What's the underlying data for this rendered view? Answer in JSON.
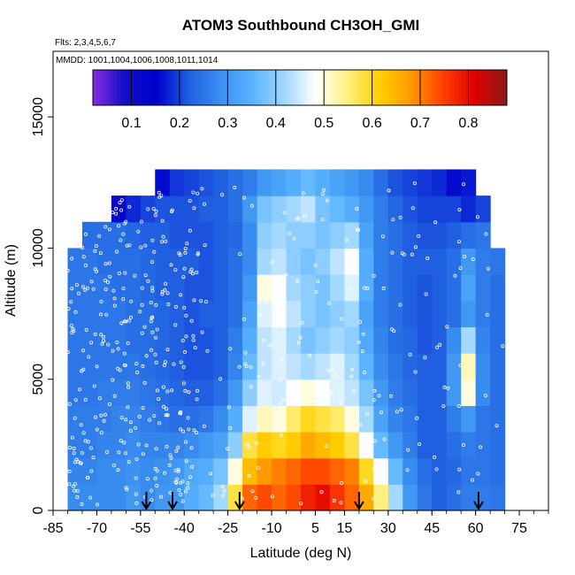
{
  "chart_data": {
    "type": "heatmap",
    "title": "ATOM3 Southbound CH3OH_GMI",
    "flights_label": "Flts: 2,3,4,5,6,7",
    "dates_label": "MMDD: 1001,1004,1006,1008,1011,1014",
    "xlabel": "Latitude (deg N)",
    "ylabel": "Altitude (m)",
    "xlim": [
      -85,
      85
    ],
    "ylim": [
      0,
      17500
    ],
    "x_ticks": [
      -85,
      -70,
      -55,
      -40,
      -25,
      -10,
      5,
      15,
      30,
      45,
      60,
      75
    ],
    "x_tick_labels": [
      "-85",
      "-70",
      "-55",
      "-40",
      "-25",
      "-10",
      "5",
      "15",
      "30",
      "45",
      "60",
      "75"
    ],
    "y_ticks": [
      0,
      5000,
      10000,
      15000
    ],
    "y_tick_labels": [
      "0",
      "5000",
      "10000",
      "15000"
    ],
    "colorbar": {
      "min": 0.02,
      "max": 0.88,
      "ticks": [
        0.1,
        0.2,
        0.3,
        0.4,
        0.5,
        0.6,
        0.7,
        0.8
      ],
      "tick_labels": [
        "0.1",
        "0.2",
        "0.3",
        "0.4",
        "0.5",
        "0.6",
        "0.7",
        "0.8"
      ],
      "colors": [
        "#8a2be2",
        "#1010c8",
        "#0000cd",
        "#1f5fe0",
        "#3a8ff0",
        "#5ab4ff",
        "#9fd6ff",
        "#ffffff",
        "#fff080",
        "#ffd000",
        "#ff9800",
        "#ff4000",
        "#e00000",
        "#8b1a1a"
      ]
    },
    "lat_centers": [
      -77.5,
      -72.5,
      -67.5,
      -62.5,
      -57.5,
      -52.5,
      -47.5,
      -42.5,
      -37.5,
      -32.5,
      -27.5,
      -22.5,
      -17.5,
      -12.5,
      -7.5,
      -2.5,
      2.5,
      7.5,
      12.5,
      17.5,
      22.5,
      27.5,
      32.5,
      37.5,
      42.5,
      47.5,
      52.5,
      57.5,
      62.5,
      67.5
    ],
    "alt_centers": [
      500,
      1500,
      2500,
      3500,
      4500,
      5500,
      6500,
      7500,
      8500,
      9500,
      10500,
      11500,
      12500
    ],
    "values": [
      [
        0.28,
        0.28,
        0.28,
        0.28,
        0.3,
        0.28,
        0.3,
        0.3,
        0.34,
        0.36,
        0.42,
        0.58,
        0.72,
        0.74,
        0.72,
        0.74,
        0.78,
        0.8,
        0.76,
        0.72,
        0.66,
        0.55,
        0.42,
        0.3,
        0.25,
        0.22,
        0.24,
        0.26,
        0.26,
        0.25
      ],
      [
        0.27,
        0.27,
        0.28,
        0.28,
        0.29,
        0.28,
        0.29,
        0.3,
        0.33,
        0.34,
        0.38,
        0.5,
        0.64,
        0.68,
        0.7,
        0.72,
        0.74,
        0.74,
        0.72,
        0.7,
        0.6,
        0.48,
        0.36,
        0.28,
        0.24,
        0.22,
        0.23,
        0.25,
        0.25,
        0.24
      ],
      [
        0.26,
        0.26,
        0.27,
        0.27,
        0.28,
        0.27,
        0.27,
        0.27,
        0.28,
        0.3,
        0.32,
        0.4,
        0.58,
        0.62,
        0.6,
        0.62,
        0.66,
        0.64,
        0.62,
        0.58,
        0.48,
        0.36,
        0.3,
        0.26,
        0.22,
        0.22,
        0.24,
        0.26,
        0.25,
        0.24
      ],
      [
        0.26,
        0.26,
        0.26,
        0.27,
        0.27,
        0.26,
        0.25,
        0.24,
        0.24,
        0.25,
        0.28,
        0.34,
        0.46,
        0.52,
        0.5,
        0.56,
        0.6,
        0.58,
        0.56,
        0.5,
        0.42,
        0.32,
        0.27,
        0.25,
        0.22,
        0.22,
        0.26,
        0.3,
        0.25,
        0.24
      ],
      [
        0.25,
        0.25,
        0.26,
        0.26,
        0.26,
        0.25,
        0.24,
        0.23,
        0.22,
        0.22,
        0.24,
        0.3,
        0.4,
        0.46,
        0.45,
        0.48,
        0.5,
        0.48,
        0.46,
        0.44,
        0.38,
        0.3,
        0.26,
        0.24,
        0.22,
        0.22,
        0.3,
        0.5,
        0.28,
        0.24
      ],
      [
        0.25,
        0.25,
        0.25,
        0.25,
        0.25,
        0.24,
        0.23,
        0.22,
        0.21,
        0.21,
        0.22,
        0.27,
        0.36,
        0.44,
        0.46,
        0.44,
        0.42,
        0.44,
        0.46,
        0.42,
        0.35,
        0.28,
        0.25,
        0.23,
        0.22,
        0.22,
        0.3,
        0.52,
        0.28,
        0.24
      ],
      [
        0.25,
        0.25,
        0.25,
        0.25,
        0.24,
        0.24,
        0.23,
        0.22,
        0.21,
        0.21,
        0.22,
        0.26,
        0.34,
        0.44,
        0.46,
        0.42,
        0.38,
        0.4,
        0.42,
        0.4,
        0.33,
        0.27,
        0.24,
        0.23,
        0.21,
        0.22,
        0.28,
        0.42,
        0.27,
        0.24
      ],
      [
        0.25,
        0.25,
        0.25,
        0.25,
        0.24,
        0.24,
        0.23,
        0.22,
        0.21,
        0.22,
        0.22,
        0.24,
        0.32,
        0.46,
        0.48,
        0.44,
        0.4,
        0.38,
        0.4,
        0.42,
        0.32,
        0.26,
        0.24,
        0.22,
        0.21,
        0.22,
        0.24,
        0.3,
        0.26,
        0.24
      ],
      [
        0.25,
        0.25,
        0.25,
        0.24,
        0.24,
        0.23,
        0.22,
        0.22,
        0.21,
        0.21,
        0.22,
        0.24,
        0.3,
        0.5,
        0.48,
        0.42,
        0.4,
        0.38,
        0.42,
        0.46,
        0.34,
        0.26,
        0.24,
        0.22,
        0.21,
        0.22,
        0.24,
        0.32,
        0.26,
        0.24
      ],
      [
        0.25,
        0.25,
        0.24,
        0.24,
        0.24,
        0.23,
        0.22,
        0.22,
        0.22,
        0.21,
        0.22,
        0.24,
        0.28,
        0.42,
        0.44,
        0.4,
        0.38,
        0.4,
        0.44,
        0.48,
        0.34,
        0.26,
        0.24,
        0.22,
        0.22,
        0.22,
        0.24,
        0.3,
        0.26,
        0.25
      ],
      [
        null,
        0.24,
        0.24,
        0.24,
        0.23,
        0.22,
        0.22,
        0.21,
        0.21,
        0.21,
        0.22,
        0.23,
        0.28,
        0.4,
        0.42,
        0.4,
        0.4,
        0.38,
        0.4,
        0.42,
        0.32,
        0.26,
        0.24,
        0.22,
        0.21,
        0.21,
        0.22,
        0.24,
        0.25,
        null
      ],
      [
        null,
        null,
        null,
        0.12,
        0.18,
        0.2,
        0.21,
        0.21,
        0.21,
        0.22,
        0.22,
        0.24,
        0.3,
        0.38,
        0.4,
        0.42,
        0.44,
        0.38,
        0.36,
        0.34,
        0.3,
        0.26,
        0.23,
        0.21,
        0.2,
        0.2,
        0.2,
        0.18,
        0.2,
        null
      ],
      [
        null,
        null,
        null,
        null,
        null,
        null,
        0.16,
        0.19,
        0.2,
        0.21,
        0.22,
        0.24,
        0.26,
        0.3,
        0.32,
        0.34,
        0.36,
        0.34,
        0.32,
        0.3,
        0.28,
        0.24,
        0.21,
        0.2,
        0.19,
        0.18,
        0.16,
        0.17,
        null,
        null
      ]
    ],
    "arrow_latitudes": [
      -53,
      -44,
      -21,
      20,
      61
    ],
    "observation_points": "white circle markers (flight sample locations)",
    "grid": false
  }
}
